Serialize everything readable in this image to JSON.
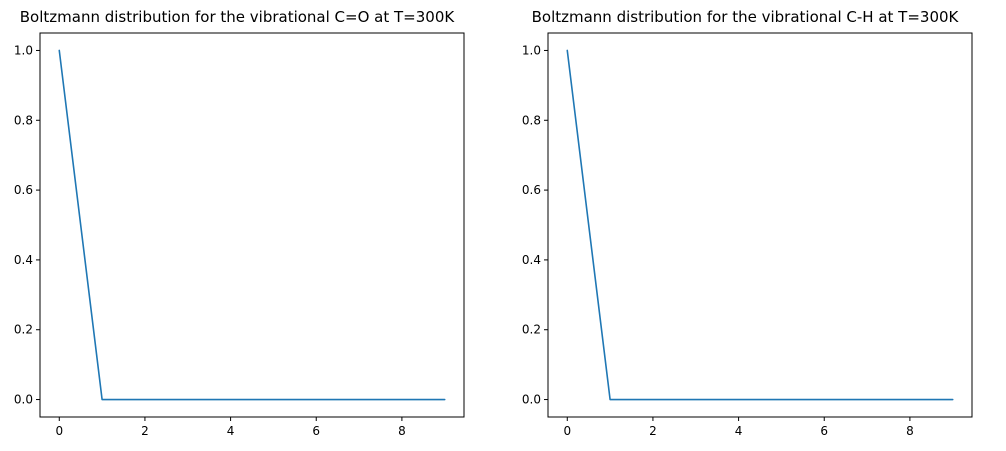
{
  "chart_data": [
    {
      "type": "line",
      "title": "Boltzmann distribution for the vibrational C=O at T=300K",
      "xlabel": "",
      "ylabel": "",
      "xlim": [
        -0.45,
        9.45
      ],
      "ylim": [
        -0.05,
        1.05
      ],
      "xticks": [
        0,
        2,
        4,
        6,
        8
      ],
      "xtick_labels": [
        "0",
        "2",
        "4",
        "6",
        "8"
      ],
      "yticks": [
        0.0,
        0.2,
        0.4,
        0.6,
        0.8,
        1.0
      ],
      "ytick_labels": [
        "0.0",
        "0.2",
        "0.4",
        "0.6",
        "0.8",
        "1.0"
      ],
      "grid": false,
      "series": [
        {
          "color": "#1f77b4",
          "x": [
            0,
            1,
            2,
            3,
            4,
            5,
            6,
            7,
            8,
            9
          ],
          "y": [
            1.0,
            0.0,
            0.0,
            0.0,
            0.0,
            0.0,
            0.0,
            0.0,
            0.0,
            0.0
          ]
        }
      ]
    },
    {
      "type": "line",
      "title": "Boltzmann distribution for the vibrational C-H at T=300K",
      "xlabel": "",
      "ylabel": "",
      "xlim": [
        -0.45,
        9.45
      ],
      "ylim": [
        -0.05,
        1.05
      ],
      "xticks": [
        0,
        2,
        4,
        6,
        8
      ],
      "xtick_labels": [
        "0",
        "2",
        "4",
        "6",
        "8"
      ],
      "yticks": [
        0.0,
        0.2,
        0.4,
        0.6,
        0.8,
        1.0
      ],
      "ytick_labels": [
        "0.0",
        "0.2",
        "0.4",
        "0.6",
        "0.8",
        "1.0"
      ],
      "grid": false,
      "series": [
        {
          "color": "#1f77b4",
          "x": [
            0,
            1,
            2,
            3,
            4,
            5,
            6,
            7,
            8,
            9
          ],
          "y": [
            1.0,
            0.0,
            0.0,
            0.0,
            0.0,
            0.0,
            0.0,
            0.0,
            0.0,
            0.0
          ]
        }
      ]
    }
  ]
}
